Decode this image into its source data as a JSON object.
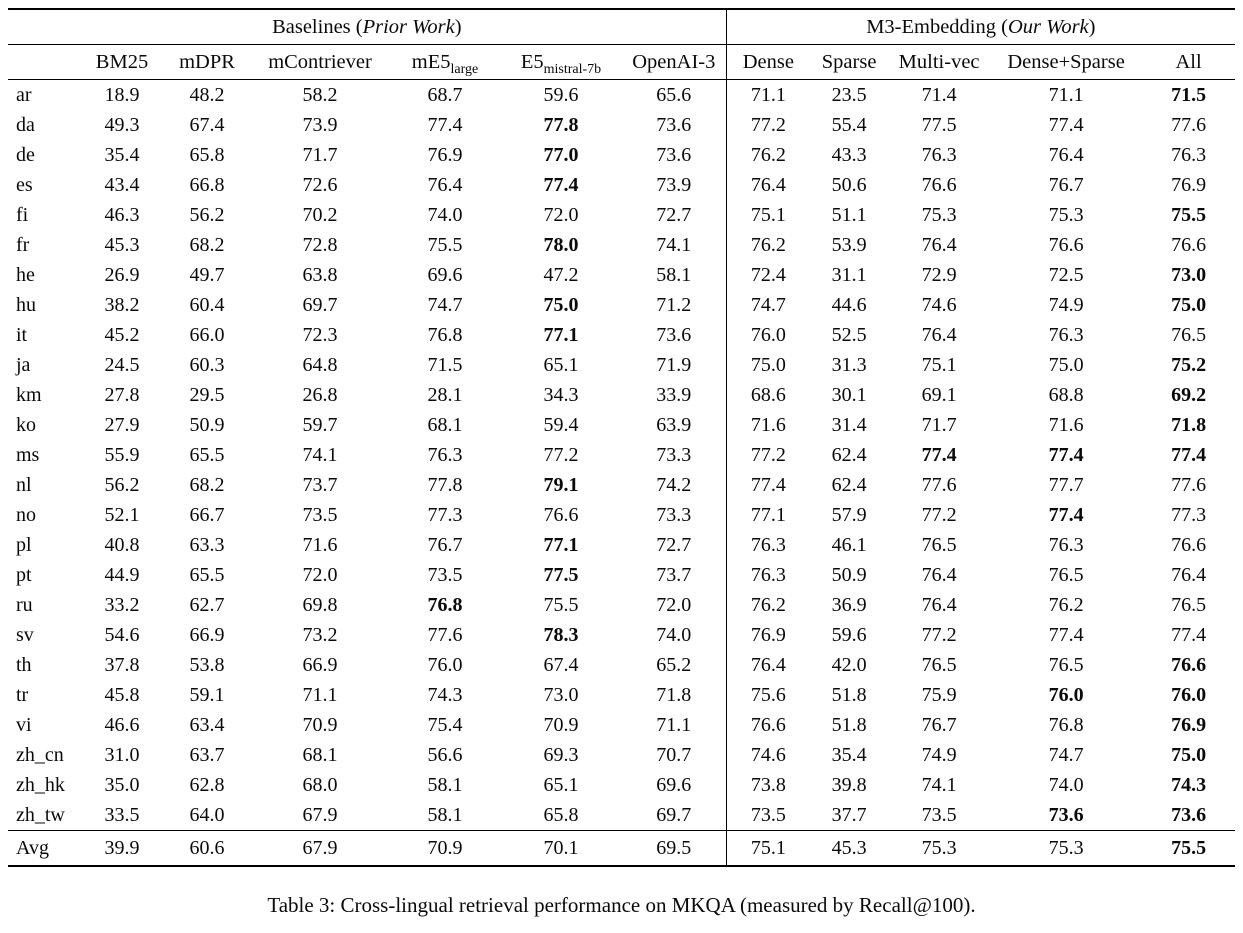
{
  "table": {
    "group_headers": {
      "baselines": {
        "prefix": "Baselines (",
        "italic": "Prior Work",
        "suffix": ")"
      },
      "m3": {
        "prefix": "M3-Embedding (",
        "italic": "Our Work",
        "suffix": ")"
      }
    },
    "columns": [
      {
        "label": "BM25"
      },
      {
        "label": "mDPR"
      },
      {
        "label": "mContriever"
      },
      {
        "label": "mE5",
        "sub": "large"
      },
      {
        "label": "E5",
        "sub": "mistral-7b"
      },
      {
        "label": "OpenAI-3"
      },
      {
        "label": "Dense"
      },
      {
        "label": "Sparse"
      },
      {
        "label": "Multi-vec"
      },
      {
        "label": "Dense+Sparse"
      },
      {
        "label": "All"
      }
    ],
    "rows": [
      {
        "lang": "ar",
        "values": [
          "18.9",
          "48.2",
          "58.2",
          "68.7",
          "59.6",
          "65.6",
          "71.1",
          "23.5",
          "71.4",
          "71.1",
          "71.5"
        ],
        "bold": [
          10
        ]
      },
      {
        "lang": "da",
        "values": [
          "49.3",
          "67.4",
          "73.9",
          "77.4",
          "77.8",
          "73.6",
          "77.2",
          "55.4",
          "77.5",
          "77.4",
          "77.6"
        ],
        "bold": [
          4
        ]
      },
      {
        "lang": "de",
        "values": [
          "35.4",
          "65.8",
          "71.7",
          "76.9",
          "77.0",
          "73.6",
          "76.2",
          "43.3",
          "76.3",
          "76.4",
          "76.3"
        ],
        "bold": [
          4
        ]
      },
      {
        "lang": "es",
        "values": [
          "43.4",
          "66.8",
          "72.6",
          "76.4",
          "77.4",
          "73.9",
          "76.4",
          "50.6",
          "76.6",
          "76.7",
          "76.9"
        ],
        "bold": [
          4
        ]
      },
      {
        "lang": "fi",
        "values": [
          "46.3",
          "56.2",
          "70.2",
          "74.0",
          "72.0",
          "72.7",
          "75.1",
          "51.1",
          "75.3",
          "75.3",
          "75.5"
        ],
        "bold": [
          10
        ]
      },
      {
        "lang": "fr",
        "values": [
          "45.3",
          "68.2",
          "72.8",
          "75.5",
          "78.0",
          "74.1",
          "76.2",
          "53.9",
          "76.4",
          "76.6",
          "76.6"
        ],
        "bold": [
          4
        ]
      },
      {
        "lang": "he",
        "values": [
          "26.9",
          "49.7",
          "63.8",
          "69.6",
          "47.2",
          "58.1",
          "72.4",
          "31.1",
          "72.9",
          "72.5",
          "73.0"
        ],
        "bold": [
          10
        ]
      },
      {
        "lang": "hu",
        "values": [
          "38.2",
          "60.4",
          "69.7",
          "74.7",
          "75.0",
          "71.2",
          "74.7",
          "44.6",
          "74.6",
          "74.9",
          "75.0"
        ],
        "bold": [
          4,
          10
        ]
      },
      {
        "lang": "it",
        "values": [
          "45.2",
          "66.0",
          "72.3",
          "76.8",
          "77.1",
          "73.6",
          "76.0",
          "52.5",
          "76.4",
          "76.3",
          "76.5"
        ],
        "bold": [
          4
        ]
      },
      {
        "lang": "ja",
        "values": [
          "24.5",
          "60.3",
          "64.8",
          "71.5",
          "65.1",
          "71.9",
          "75.0",
          "31.3",
          "75.1",
          "75.0",
          "75.2"
        ],
        "bold": [
          10
        ]
      },
      {
        "lang": "km",
        "values": [
          "27.8",
          "29.5",
          "26.8",
          "28.1",
          "34.3",
          "33.9",
          "68.6",
          "30.1",
          "69.1",
          "68.8",
          "69.2"
        ],
        "bold": [
          10
        ]
      },
      {
        "lang": "ko",
        "values": [
          "27.9",
          "50.9",
          "59.7",
          "68.1",
          "59.4",
          "63.9",
          "71.6",
          "31.4",
          "71.7",
          "71.6",
          "71.8"
        ],
        "bold": [
          10
        ]
      },
      {
        "lang": "ms",
        "values": [
          "55.9",
          "65.5",
          "74.1",
          "76.3",
          "77.2",
          "73.3",
          "77.2",
          "62.4",
          "77.4",
          "77.4",
          "77.4"
        ],
        "bold": [
          8,
          9,
          10
        ]
      },
      {
        "lang": "nl",
        "values": [
          "56.2",
          "68.2",
          "73.7",
          "77.8",
          "79.1",
          "74.2",
          "77.4",
          "62.4",
          "77.6",
          "77.7",
          "77.6"
        ],
        "bold": [
          4
        ]
      },
      {
        "lang": "no",
        "values": [
          "52.1",
          "66.7",
          "73.5",
          "77.3",
          "76.6",
          "73.3",
          "77.1",
          "57.9",
          "77.2",
          "77.4",
          "77.3"
        ],
        "bold": [
          9
        ]
      },
      {
        "lang": "pl",
        "values": [
          "40.8",
          "63.3",
          "71.6",
          "76.7",
          "77.1",
          "72.7",
          "76.3",
          "46.1",
          "76.5",
          "76.3",
          "76.6"
        ],
        "bold": [
          4
        ]
      },
      {
        "lang": "pt",
        "values": [
          "44.9",
          "65.5",
          "72.0",
          "73.5",
          "77.5",
          "73.7",
          "76.3",
          "50.9",
          "76.4",
          "76.5",
          "76.4"
        ],
        "bold": [
          4
        ]
      },
      {
        "lang": "ru",
        "values": [
          "33.2",
          "62.7",
          "69.8",
          "76.8",
          "75.5",
          "72.0",
          "76.2",
          "36.9",
          "76.4",
          "76.2",
          "76.5"
        ],
        "bold": [
          3
        ]
      },
      {
        "lang": "sv",
        "values": [
          "54.6",
          "66.9",
          "73.2",
          "77.6",
          "78.3",
          "74.0",
          "76.9",
          "59.6",
          "77.2",
          "77.4",
          "77.4"
        ],
        "bold": [
          4
        ]
      },
      {
        "lang": "th",
        "values": [
          "37.8",
          "53.8",
          "66.9",
          "76.0",
          "67.4",
          "65.2",
          "76.4",
          "42.0",
          "76.5",
          "76.5",
          "76.6"
        ],
        "bold": [
          10
        ]
      },
      {
        "lang": "tr",
        "values": [
          "45.8",
          "59.1",
          "71.1",
          "74.3",
          "73.0",
          "71.8",
          "75.6",
          "51.8",
          "75.9",
          "76.0",
          "76.0"
        ],
        "bold": [
          9,
          10
        ]
      },
      {
        "lang": "vi",
        "values": [
          "46.6",
          "63.4",
          "70.9",
          "75.4",
          "70.9",
          "71.1",
          "76.6",
          "51.8",
          "76.7",
          "76.8",
          "76.9"
        ],
        "bold": [
          10
        ]
      },
      {
        "lang": "zh_cn",
        "values": [
          "31.0",
          "63.7",
          "68.1",
          "56.6",
          "69.3",
          "70.7",
          "74.6",
          "35.4",
          "74.9",
          "74.7",
          "75.0"
        ],
        "bold": [
          10
        ]
      },
      {
        "lang": "zh_hk",
        "values": [
          "35.0",
          "62.8",
          "68.0",
          "58.1",
          "65.1",
          "69.6",
          "73.8",
          "39.8",
          "74.1",
          "74.0",
          "74.3"
        ],
        "bold": [
          10
        ]
      },
      {
        "lang": "zh_tw",
        "values": [
          "33.5",
          "64.0",
          "67.9",
          "58.1",
          "65.8",
          "69.7",
          "73.5",
          "37.7",
          "73.5",
          "73.6",
          "73.6"
        ],
        "bold": [
          9,
          10
        ]
      }
    ],
    "avg_row": {
      "lang": "Avg",
      "values": [
        "39.9",
        "60.6",
        "67.9",
        "70.9",
        "70.1",
        "69.5",
        "75.1",
        "45.3",
        "75.3",
        "75.3",
        "75.5"
      ],
      "bold": [
        10
      ]
    }
  },
  "caption": "Table 3: Cross-lingual retrieval performance on MKQA (measured by Recall@100)."
}
